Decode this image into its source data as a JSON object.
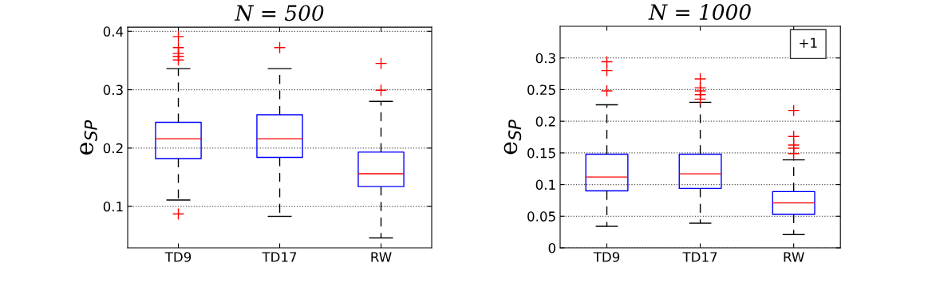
{
  "chart_data": [
    {
      "type": "box",
      "title": "N = 500",
      "ylabel": "e$_{SP}$",
      "categories": [
        "TD9",
        "TD17",
        "RW"
      ],
      "ylim": [
        0.029,
        0.407
      ],
      "yticks": [
        0.1,
        0.2,
        0.3,
        0.4
      ],
      "grid": "y",
      "marker": "cross",
      "boxes": [
        {
          "low": 0.111,
          "q1": 0.182,
          "median": 0.216,
          "q3": 0.244,
          "high": 0.336,
          "outliers": [
            0.391,
            0.372,
            0.362,
            0.357,
            0.351,
            0.087
          ]
        },
        {
          "low": 0.083,
          "q1": 0.184,
          "median": 0.216,
          "q3": 0.257,
          "high": 0.336,
          "outliers": [
            0.372
          ]
        },
        {
          "low": 0.046,
          "q1": 0.134,
          "median": 0.156,
          "q3": 0.193,
          "high": 0.28,
          "outliers": [
            0.345,
            0.299
          ]
        }
      ]
    },
    {
      "type": "box",
      "title": "N = 1000",
      "ylabel": "e$_{SP}$",
      "categories": [
        "TD9",
        "TD17",
        "RW"
      ],
      "ylim": [
        0,
        0.35
      ],
      "yticks": [
        0,
        0.05,
        0.1,
        0.15,
        0.2,
        0.25,
        0.3
      ],
      "grid": "y",
      "marker": "cross",
      "annotations": [
        "+1"
      ],
      "boxes": [
        {
          "low": 0.034,
          "q1": 0.09,
          "median": 0.112,
          "q3": 0.148,
          "high": 0.226,
          "outliers": [
            0.294,
            0.28,
            0.248
          ]
        },
        {
          "low": 0.039,
          "q1": 0.094,
          "median": 0.117,
          "q3": 0.148,
          "high": 0.23,
          "outliers": [
            0.267,
            0.253,
            0.248,
            0.242,
            0.235
          ]
        },
        {
          "low": 0.021,
          "q1": 0.053,
          "median": 0.071,
          "q3": 0.089,
          "high": 0.139,
          "outliers": [
            0.217,
            0.176,
            0.1625,
            0.1575,
            0.149
          ]
        }
      ]
    }
  ]
}
